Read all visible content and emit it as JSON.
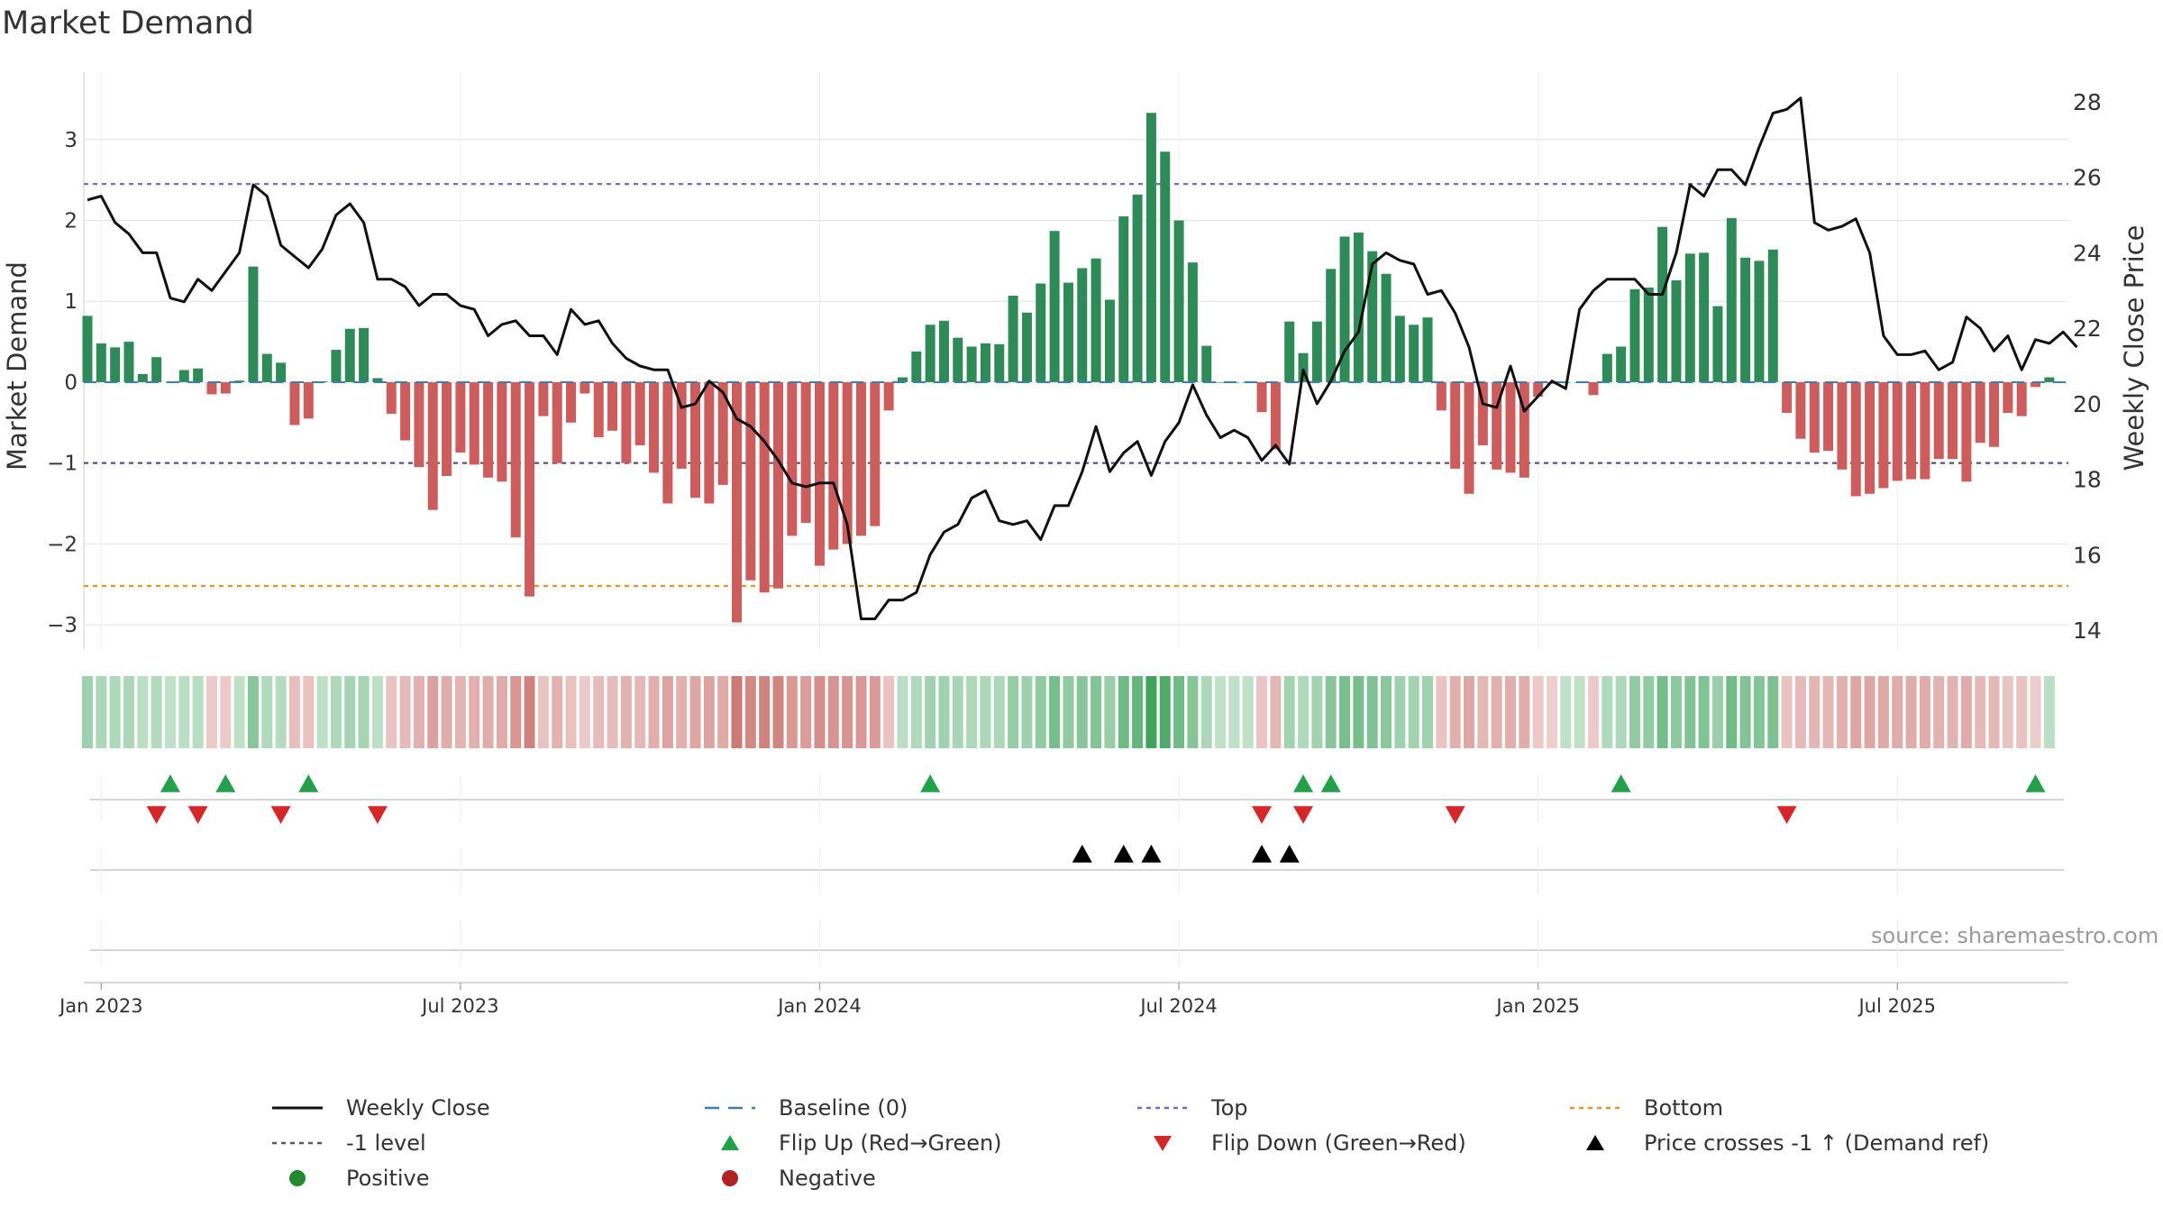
{
  "title": "Market Demand",
  "source": "source: sharemaestro.com",
  "colors": {
    "positive": "#2e8b57",
    "negative": "#cd5c5c",
    "price_line": "#111111",
    "top_line": "#7b68c8",
    "bottom_line": "#e8922a",
    "minus1_line": "#555577",
    "baseline": "#3a7fb0",
    "flip_up": "#22a14a",
    "flip_down": "#d62728",
    "cross": "#000000"
  },
  "legend": [
    {
      "label": "Weekly Close",
      "symbol": "line"
    },
    {
      "label": "Baseline (0)",
      "symbol": "dash"
    },
    {
      "label": "Top",
      "symbol": "dot-purple"
    },
    {
      "label": "Bottom",
      "symbol": "dot-orange"
    },
    {
      "label": "-1 level",
      "symbol": "dot-gray"
    },
    {
      "label": "Flip Up (Red→Green)",
      "symbol": "tri-up-green"
    },
    {
      "label": "Flip Down (Green→Red)",
      "symbol": "tri-down-red"
    },
    {
      "label": "Price crosses -1 ↑ (Demand ref)",
      "symbol": "tri-up-black"
    },
    {
      "label": "Positive",
      "symbol": "circle-green"
    },
    {
      "label": "Negative",
      "symbol": "circle-red"
    }
  ],
  "chart_data": {
    "type": "bar",
    "title": "Market Demand",
    "xlabel": "",
    "ylabel": "Market Demand",
    "y2label": "Weekly Close Price",
    "ylim": [
      -3.3,
      3.7
    ],
    "y2lim": [
      13.5,
      28.5
    ],
    "yticks": [
      "−3",
      "−2",
      "−1",
      "0",
      "1",
      "2",
      "3"
    ],
    "ytick_values": [
      -3,
      -2,
      -1,
      0,
      1,
      2,
      3
    ],
    "y2ticks": [
      14,
      16,
      18,
      20,
      22,
      24,
      26,
      28
    ],
    "xtick_labels": [
      "Jan 2023",
      "Jul 2023",
      "Jan 2024",
      "Jul 2024",
      "Jan 2025",
      "Jul 2025"
    ],
    "xtick_weeks": [
      1,
      27,
      53,
      79,
      105,
      131
    ],
    "reference_lines": {
      "top": 2.45,
      "bottom": -2.52,
      "minus1": -1.0,
      "baseline": 0
    },
    "series": [
      {
        "name": "Market Demand",
        "values": [
          0.82,
          0.48,
          0.43,
          0.5,
          0.1,
          0.31,
          0.0,
          0.15,
          0.17,
          -0.15,
          -0.14,
          0.02,
          1.43,
          0.35,
          0.24,
          -0.53,
          -0.45,
          0.01,
          0.4,
          0.66,
          0.67,
          0.05,
          -0.39,
          -0.72,
          -1.05,
          -1.58,
          -1.16,
          -0.87,
          -1.02,
          -1.18,
          -1.23,
          -1.92,
          -2.65,
          -0.42,
          -1.0,
          -0.5,
          -0.14,
          -0.68,
          -0.6,
          -1.0,
          -0.78,
          -1.12,
          -1.5,
          -1.07,
          -1.43,
          -1.5,
          -1.27,
          -2.97,
          -2.45,
          -2.6,
          -2.55,
          -1.9,
          -1.74,
          -2.27,
          -2.07,
          -2.0,
          -1.9,
          -1.78,
          -0.35,
          0.06,
          0.38,
          0.71,
          0.76,
          0.55,
          0.44,
          0.48,
          0.47,
          1.07,
          0.86,
          1.22,
          1.87,
          1.23,
          1.41,
          1.53,
          1.02,
          2.05,
          2.32,
          3.33,
          2.85,
          2.0,
          1.48,
          0.45,
          0.0,
          0.0,
          0.0,
          -0.37,
          -0.83,
          0.75,
          0.36,
          0.75,
          1.4,
          1.8,
          1.85,
          1.62,
          1.34,
          0.82,
          0.71,
          0.8,
          -0.35,
          -1.07,
          -1.38,
          -0.78,
          -1.08,
          -1.12,
          -1.18,
          -0.18,
          -0.02,
          0.0,
          0.0,
          -0.16,
          0.35,
          0.44,
          1.15,
          1.17,
          1.92,
          1.26,
          1.59,
          1.6,
          0.94,
          2.03,
          1.54,
          1.5,
          1.64,
          -0.38,
          -0.7,
          -0.87,
          -0.85,
          -1.08,
          -1.41,
          -1.38,
          -1.31,
          -1.22,
          -1.2,
          -1.2,
          -0.95,
          -0.95,
          -1.23,
          -0.75,
          -0.8,
          -0.38,
          -0.42,
          -0.06,
          0.06
        ]
      },
      {
        "name": "Weekly Close",
        "values": [
          25.4,
          25.5,
          24.8,
          24.5,
          24.0,
          24.0,
          22.8,
          22.7,
          23.3,
          23.0,
          23.5,
          24.0,
          25.8,
          25.5,
          24.2,
          23.9,
          23.6,
          24.1,
          25.0,
          25.3,
          24.8,
          23.3,
          23.3,
          23.1,
          22.6,
          22.9,
          22.9,
          22.6,
          22.5,
          21.8,
          22.1,
          22.2,
          21.8,
          21.8,
          21.3,
          22.5,
          22.1,
          22.2,
          21.6,
          21.2,
          21.0,
          20.9,
          20.9,
          19.9,
          20.0,
          20.6,
          20.3,
          19.6,
          19.4,
          19.0,
          18.5,
          17.9,
          17.8,
          17.9,
          17.9,
          16.8,
          14.3,
          14.3,
          14.8,
          14.8,
          15.0,
          16.0,
          16.6,
          16.8,
          17.5,
          17.7,
          16.9,
          16.8,
          16.9,
          16.4,
          17.3,
          17.3,
          18.2,
          19.4,
          18.2,
          18.7,
          19.0,
          18.1,
          19.0,
          19.5,
          20.5,
          19.7,
          19.1,
          19.3,
          19.1,
          18.5,
          18.9,
          18.4,
          20.9,
          20.0,
          20.6,
          21.4,
          21.9,
          23.7,
          24.0,
          23.8,
          23.7,
          22.9,
          23.0,
          22.4,
          21.5,
          20.0,
          19.9,
          21.0,
          19.8,
          20.2,
          20.6,
          20.4,
          22.5,
          23.0,
          23.3,
          23.3,
          23.3,
          22.9,
          22.9,
          24.0,
          25.8,
          25.5,
          26.2,
          26.2,
          25.8,
          26.8,
          27.7,
          27.8,
          28.1,
          24.8,
          24.6,
          24.7,
          24.9,
          24.0,
          21.8,
          21.3,
          21.3,
          21.4,
          20.9,
          21.1,
          22.3,
          22.0,
          21.4,
          21.8,
          20.9,
          21.7,
          21.6,
          21.9,
          21.5
        ]
      }
    ],
    "signal_rows": [
      {
        "name": "Flip Up",
        "weeks": [
          6,
          10,
          16,
          61,
          88,
          90,
          111,
          141
        ]
      },
      {
        "name": "Flip Down",
        "weeks": [
          5,
          8,
          14,
          21,
          85,
          88,
          99,
          123
        ]
      },
      {
        "name": "Price crosses -1",
        "weeks": [
          72,
          75,
          77,
          85,
          87
        ]
      }
    ]
  }
}
